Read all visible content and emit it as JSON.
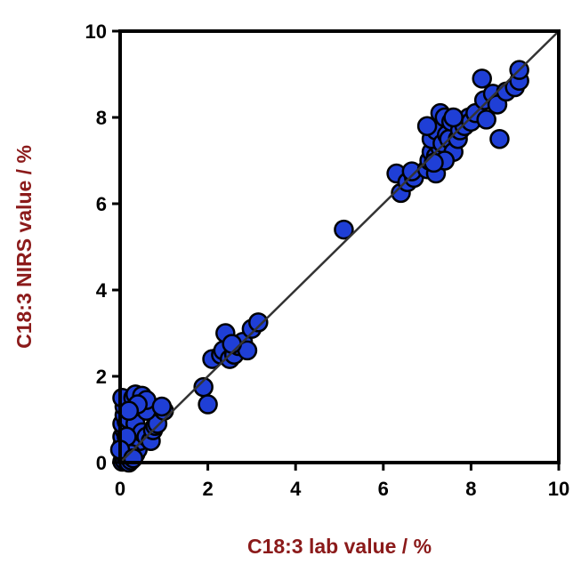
{
  "chart_data": {
    "type": "scatter",
    "xlabel": "C18:3 lab value / %",
    "ylabel": "C18:3 NIRS value / %",
    "xlim": [
      0,
      10
    ],
    "ylim": [
      0,
      10
    ],
    "xticks": [
      "0",
      "2",
      "4",
      "6",
      "8",
      "10"
    ],
    "yticks": [
      "0",
      "2",
      "4",
      "6",
      "8",
      "10"
    ],
    "grid": false,
    "legend": "none",
    "reference_line": {
      "from": [
        0,
        0
      ],
      "to": [
        10,
        10
      ]
    },
    "colors": {
      "point_fill": "#1f3fd6",
      "point_stroke": "#000000",
      "axis_title": "#8b1a1a",
      "line": "#333333"
    },
    "series": [
      {
        "values": [
          [
            0.05,
            0.02
          ],
          [
            0.1,
            0.05
          ],
          [
            0.15,
            0.1
          ],
          [
            0.2,
            0.0
          ],
          [
            0.25,
            0.05
          ],
          [
            0.3,
            0.15
          ],
          [
            0.35,
            0.2
          ],
          [
            0.1,
            0.3
          ],
          [
            0.05,
            0.4
          ],
          [
            0.15,
            0.45
          ],
          [
            0.2,
            0.5
          ],
          [
            0.3,
            0.35
          ],
          [
            0.4,
            0.3
          ],
          [
            0.45,
            0.5
          ],
          [
            0.05,
            0.6
          ],
          [
            0.1,
            0.75
          ],
          [
            0.2,
            0.7
          ],
          [
            0.3,
            0.8
          ],
          [
            0.05,
            0.9
          ],
          [
            0.15,
            0.95
          ],
          [
            0.1,
            1.1
          ],
          [
            0.2,
            1.0
          ],
          [
            0.35,
            0.9
          ],
          [
            0.5,
            0.7
          ],
          [
            0.6,
            0.6
          ],
          [
            0.7,
            0.5
          ],
          [
            0.75,
            0.75
          ],
          [
            0.8,
            0.85
          ],
          [
            0.85,
            0.9
          ],
          [
            0.6,
            1.2
          ],
          [
            0.1,
            1.3
          ],
          [
            0.05,
            1.5
          ],
          [
            0.3,
            1.5
          ],
          [
            0.35,
            1.58
          ],
          [
            0.5,
            1.55
          ],
          [
            0.6,
            1.45
          ],
          [
            0.4,
            1.35
          ],
          [
            0.2,
            1.2
          ],
          [
            1.0,
            1.2
          ],
          [
            0.95,
            1.3
          ],
          [
            0.25,
            0.2
          ],
          [
            0.15,
            0.6
          ],
          [
            0.0,
            0.3
          ],
          [
            0.3,
            0.1
          ],
          [
            1.9,
            1.75
          ],
          [
            2.0,
            1.35
          ],
          [
            2.1,
            2.4
          ],
          [
            2.3,
            2.5
          ],
          [
            2.35,
            2.6
          ],
          [
            2.4,
            3.0
          ],
          [
            2.5,
            2.4
          ],
          [
            2.6,
            2.5
          ],
          [
            2.7,
            2.7
          ],
          [
            2.8,
            2.8
          ],
          [
            2.9,
            2.6
          ],
          [
            3.0,
            3.1
          ],
          [
            3.15,
            3.25
          ],
          [
            2.55,
            2.75
          ],
          [
            5.1,
            5.4
          ],
          [
            6.3,
            6.7
          ],
          [
            6.4,
            6.25
          ],
          [
            6.55,
            6.5
          ],
          [
            6.7,
            6.6
          ],
          [
            6.65,
            6.75
          ],
          [
            7.0,
            6.8
          ],
          [
            7.05,
            7.0
          ],
          [
            7.1,
            7.2
          ],
          [
            7.2,
            7.1
          ],
          [
            7.3,
            7.3
          ],
          [
            7.2,
            6.7
          ],
          [
            7.1,
            7.5
          ],
          [
            7.2,
            7.7
          ],
          [
            7.3,
            8.1
          ],
          [
            7.4,
            8.0
          ],
          [
            7.0,
            7.8
          ],
          [
            7.35,
            7.4
          ],
          [
            7.45,
            7.6
          ],
          [
            7.5,
            7.5
          ],
          [
            7.6,
            7.2
          ],
          [
            7.55,
            7.9
          ],
          [
            7.7,
            7.5
          ],
          [
            7.75,
            7.7
          ],
          [
            7.85,
            7.8
          ],
          [
            7.95,
            8.0
          ],
          [
            8.0,
            7.9
          ],
          [
            8.1,
            8.1
          ],
          [
            7.6,
            8.0
          ],
          [
            7.4,
            7.0
          ],
          [
            7.15,
            6.95
          ],
          [
            8.25,
            8.9
          ],
          [
            8.3,
            8.4
          ],
          [
            8.35,
            7.95
          ],
          [
            8.5,
            8.55
          ],
          [
            8.6,
            8.3
          ],
          [
            8.65,
            7.5
          ],
          [
            8.8,
            8.6
          ],
          [
            9.0,
            8.7
          ],
          [
            9.1,
            8.85
          ],
          [
            9.1,
            9.1
          ]
        ]
      }
    ]
  }
}
